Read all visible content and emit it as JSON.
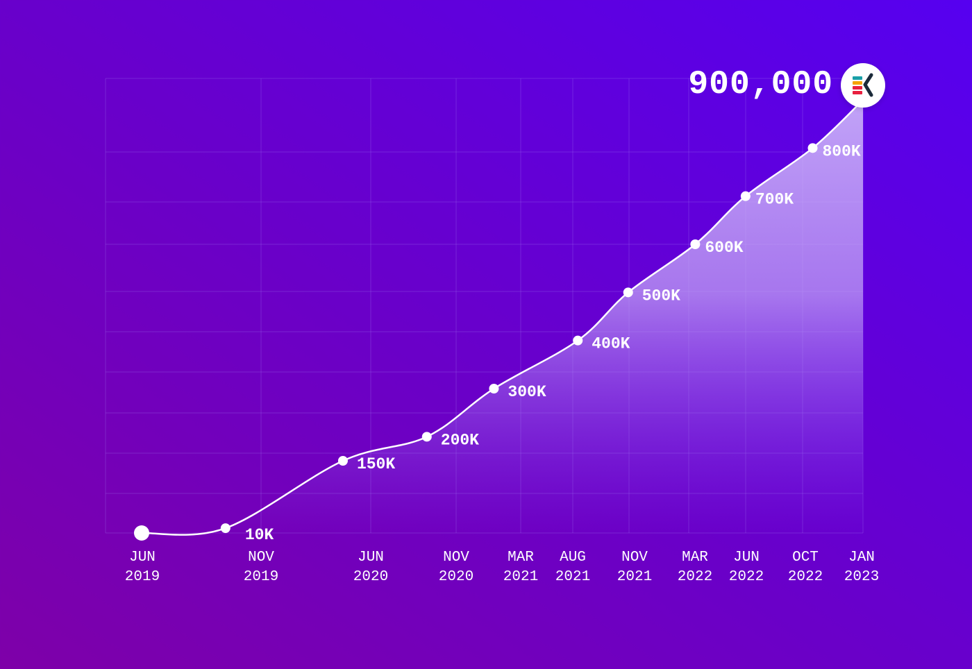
{
  "headline": {
    "value": "900,000"
  },
  "logo": {
    "icon": "ek-brand-logo-icon",
    "colors": [
      "#e8203f",
      "#f5a300",
      "#1aa0a8",
      "#1b2a3a"
    ]
  },
  "colors": {
    "background_start": "#7e00a8",
    "background_end": "#5600f0",
    "line": "#ffffff",
    "area_fill": "#c9b3f5",
    "grid": "#9d6cf0"
  },
  "chart_data": {
    "type": "area",
    "title": "",
    "xlabel": "",
    "ylabel": "",
    "grid": true,
    "x_tick_labels": [
      {
        "month": "JUN",
        "year": "2019"
      },
      {
        "month": "NOV",
        "year": "2019"
      },
      {
        "month": "JUN",
        "year": "2020"
      },
      {
        "month": "NOV",
        "year": "2020"
      },
      {
        "month": "MAR",
        "year": "2021"
      },
      {
        "month": "AUG",
        "year": "2021"
      },
      {
        "month": "NOV",
        "year": "2021"
      },
      {
        "month": "MAR",
        "year": "2022"
      },
      {
        "month": "JUN",
        "year": "2022"
      },
      {
        "month": "OCT",
        "year": "2022"
      },
      {
        "month": "JAN",
        "year": "2023"
      }
    ],
    "points": [
      {
        "x": "2019-06",
        "y": 0,
        "label": ""
      },
      {
        "x": "2019-11",
        "y": 10000,
        "label": "10K"
      },
      {
        "x": "2020-06",
        "y": 150000,
        "label": "150K"
      },
      {
        "x": "2020-11",
        "y": 200000,
        "label": "200K"
      },
      {
        "x": "2021-03",
        "y": 300000,
        "label": "300K"
      },
      {
        "x": "2021-08",
        "y": 400000,
        "label": "400K"
      },
      {
        "x": "2021-11",
        "y": 500000,
        "label": "500K"
      },
      {
        "x": "2022-03",
        "y": 600000,
        "label": "600K"
      },
      {
        "x": "2022-06",
        "y": 700000,
        "label": "700K"
      },
      {
        "x": "2022-10",
        "y": 800000,
        "label": "800K"
      }
    ],
    "endpoint": {
      "x": "2023-01",
      "y": 900000,
      "label": "900,000"
    }
  }
}
